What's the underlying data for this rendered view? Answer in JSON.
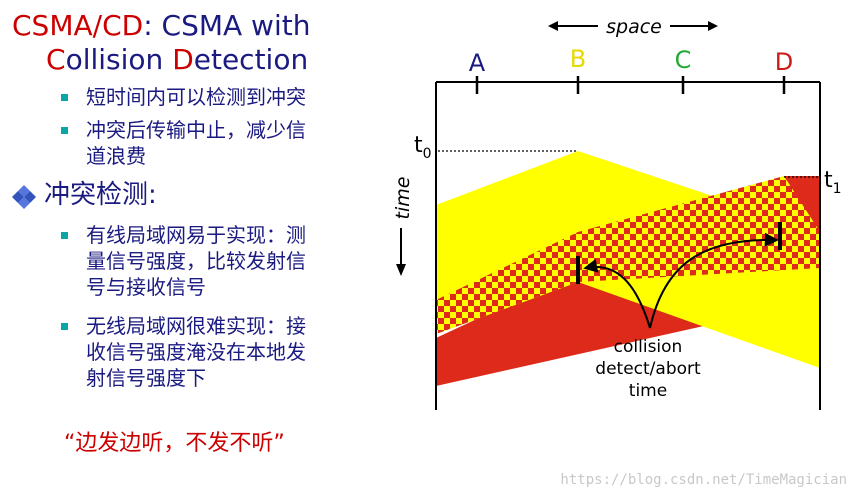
{
  "title": {
    "csmacd": "CSMA/CD",
    "colon_rest": ": CSMA with",
    "line2_c": "C",
    "line2_ollision": "ollision ",
    "line2_d": "D",
    "line2_etection": "etection"
  },
  "bullets_top": [
    {
      "lines": [
        "短时间内可以检测到冲突"
      ]
    },
    {
      "lines": [
        "冲突后传输中止，减少信",
        "道浪费"
      ]
    }
  ],
  "section_heading": "冲突检测:",
  "bullets_bottom": [
    {
      "lines": [
        "有线局域网易于实现：测",
        "量信号强度，比较发射信",
        "号与接收信号"
      ]
    },
    {
      "lines": [
        "无线局域网很难实现：接",
        "收信号强度淹没在本地发",
        "射信号强度下"
      ]
    }
  ],
  "quote": "“边发边听，不发不听”",
  "diagram": {
    "space_label": "space",
    "time_label": "time",
    "stations": [
      {
        "name": "A",
        "color": "#1a1a80"
      },
      {
        "name": "B",
        "color": "#e8d800"
      },
      {
        "name": "C",
        "color": "#22aa33"
      },
      {
        "name": "D",
        "color": "#cc1a1a"
      }
    ],
    "t0": "t",
    "t0_sub": "0",
    "t1": "t",
    "t1_sub": "1",
    "caption": [
      "collision",
      "detect/abort",
      "time"
    ],
    "colors": {
      "yellow": "#ffff00",
      "red": "#dd2a1a"
    }
  },
  "watermark": "https://blog.csdn.net/TimeMagician"
}
